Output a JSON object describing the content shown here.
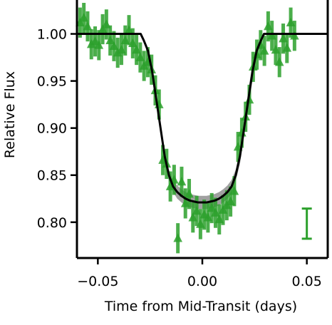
{
  "chart_data": {
    "type": "scatter",
    "xlabel": "Time from Mid-Transit (days)",
    "ylabel": "Relative Flux",
    "xlim": [
      -0.06,
      0.06
    ],
    "ylim": [
      0.762,
      1.036
    ],
    "x_ticks": [
      -0.05,
      0.0,
      0.05
    ],
    "x_tick_labels": [
      "−0.05",
      "0.00",
      "0.05"
    ],
    "y_ticks": [
      0.8,
      0.85,
      0.9,
      0.95,
      1.0
    ],
    "y_tick_labels": [
      "0.80",
      "0.85",
      "0.90",
      "0.95",
      "1.00"
    ],
    "grid": false,
    "legend": "none",
    "colors": {
      "data": "#2ca02c",
      "model": "#000000",
      "model_band": "#808080"
    },
    "series": [
      {
        "kind": "data_points",
        "marker": "triangle-up",
        "points": [
          {
            "x": -0.0585,
            "y": 1.012,
            "err": 0.016
          },
          {
            "x": -0.0567,
            "y": 1.017,
            "err": 0.016
          },
          {
            "x": -0.0549,
            "y": 1.008,
            "err": 0.016
          },
          {
            "x": -0.0531,
            "y": 0.989,
            "err": 0.016
          },
          {
            "x": -0.0513,
            "y": 0.992,
            "err": 0.016
          },
          {
            "x": -0.0495,
            "y": 0.988,
            "err": 0.016
          },
          {
            "x": -0.0477,
            "y": 1.005,
            "err": 0.016
          },
          {
            "x": -0.0459,
            "y": 1.01,
            "err": 0.016
          },
          {
            "x": -0.0441,
            "y": 0.993,
            "err": 0.016
          },
          {
            "x": -0.0423,
            "y": 0.987,
            "err": 0.016
          },
          {
            "x": -0.0405,
            "y": 0.98,
            "err": 0.016
          },
          {
            "x": -0.0387,
            "y": 0.983,
            "err": 0.016
          },
          {
            "x": -0.0369,
            "y": 0.993,
            "err": 0.016
          },
          {
            "x": -0.0351,
            "y": 1.004,
            "err": 0.016
          },
          {
            "x": -0.0333,
            "y": 0.99,
            "err": 0.016
          },
          {
            "x": -0.0315,
            "y": 0.983,
            "err": 0.016
          },
          {
            "x": -0.0297,
            "y": 0.975,
            "err": 0.016
          },
          {
            "x": -0.0279,
            "y": 0.966,
            "err": 0.016
          },
          {
            "x": -0.0261,
            "y": 0.97,
            "err": 0.016
          },
          {
            "x": -0.0243,
            "y": 0.962,
            "err": 0.016
          },
          {
            "x": -0.0225,
            "y": 0.94,
            "err": 0.016
          },
          {
            "x": -0.0207,
            "y": 0.925,
            "err": 0.016
          },
          {
            "x": -0.0189,
            "y": 0.866,
            "err": 0.016
          },
          {
            "x": -0.0171,
            "y": 0.862,
            "err": 0.016
          },
          {
            "x": -0.0153,
            "y": 0.838,
            "err": 0.016
          },
          {
            "x": -0.0135,
            "y": 0.845,
            "err": 0.016
          },
          {
            "x": -0.0117,
            "y": 0.783,
            "err": 0.016
          },
          {
            "x": -0.0099,
            "y": 0.843,
            "err": 0.016
          },
          {
            "x": -0.0081,
            "y": 0.82,
            "err": 0.016
          },
          {
            "x": -0.0063,
            "y": 0.83,
            "err": 0.016
          },
          {
            "x": -0.0045,
            "y": 0.805,
            "err": 0.016
          },
          {
            "x": -0.0027,
            "y": 0.812,
            "err": 0.016
          },
          {
            "x": -0.0009,
            "y": 0.798,
            "err": 0.016
          },
          {
            "x": 0.0009,
            "y": 0.808,
            "err": 0.016
          },
          {
            "x": 0.0027,
            "y": 0.805,
            "err": 0.016
          },
          {
            "x": 0.0045,
            "y": 0.815,
            "err": 0.016
          },
          {
            "x": 0.0063,
            "y": 0.81,
            "err": 0.016
          },
          {
            "x": 0.0081,
            "y": 0.803,
            "err": 0.016
          },
          {
            "x": 0.0099,
            "y": 0.813,
            "err": 0.016
          },
          {
            "x": 0.0117,
            "y": 0.818,
            "err": 0.016
          },
          {
            "x": 0.0135,
            "y": 0.822,
            "err": 0.016
          },
          {
            "x": 0.0153,
            "y": 0.833,
            "err": 0.016
          },
          {
            "x": 0.0171,
            "y": 0.88,
            "err": 0.016
          },
          {
            "x": 0.0189,
            "y": 0.895,
            "err": 0.016
          },
          {
            "x": 0.0207,
            "y": 0.912,
            "err": 0.016
          },
          {
            "x": 0.0225,
            "y": 0.93,
            "err": 0.016
          },
          {
            "x": 0.0243,
            "y": 0.965,
            "err": 0.016
          },
          {
            "x": 0.0261,
            "y": 0.978,
            "err": 0.016
          },
          {
            "x": 0.0279,
            "y": 0.988,
            "err": 0.016
          },
          {
            "x": 0.0297,
            "y": 0.982,
            "err": 0.016
          },
          {
            "x": 0.0315,
            "y": 1.008,
            "err": 0.016
          },
          {
            "x": 0.0333,
            "y": 0.998,
            "err": 0.016
          },
          {
            "x": 0.0351,
            "y": 0.983,
            "err": 0.016
          },
          {
            "x": 0.0369,
            "y": 0.97,
            "err": 0.016
          },
          {
            "x": 0.0387,
            "y": 0.995,
            "err": 0.016
          },
          {
            "x": 0.0405,
            "y": 0.985,
            "err": 0.016
          },
          {
            "x": 0.0423,
            "y": 1.012,
            "err": 0.016
          },
          {
            "x": 0.0441,
            "y": 0.998,
            "err": 0.016
          }
        ]
      },
      {
        "kind": "model",
        "curve": {
          "x": [
            -0.06,
            -0.0295,
            -0.028,
            -0.026,
            -0.024,
            -0.022,
            -0.02,
            -0.018,
            -0.016,
            -0.014,
            -0.012,
            -0.01,
            -0.008,
            -0.006,
            -0.004,
            -0.002,
            0.0,
            0.002,
            0.004,
            0.006,
            0.008,
            0.01,
            0.012,
            0.014,
            0.016,
            0.018,
            0.02,
            0.022,
            0.024,
            0.026,
            0.028,
            0.0295,
            0.06
          ],
          "y": [
            1.0,
            1.0,
            0.993,
            0.982,
            0.96,
            0.93,
            0.9,
            0.87,
            0.85,
            0.838,
            0.832,
            0.828,
            0.825,
            0.823,
            0.822,
            0.821,
            0.821,
            0.821,
            0.822,
            0.823,
            0.825,
            0.828,
            0.832,
            0.838,
            0.85,
            0.87,
            0.9,
            0.93,
            0.96,
            0.982,
            0.993,
            1.0,
            1.0
          ]
        },
        "uncertainty_band": [
          0.0,
          0.0,
          0.001,
          0.002,
          0.003,
          0.004,
          0.005,
          0.005,
          0.006,
          0.006,
          0.007,
          0.007,
          0.007,
          0.007,
          0.007,
          0.007,
          0.007,
          0.007,
          0.007,
          0.007,
          0.007,
          0.007,
          0.007,
          0.007,
          0.006,
          0.008,
          0.009,
          0.01,
          0.009,
          0.005,
          0.002,
          0.0,
          0.0
        ]
      },
      {
        "kind": "typical_error",
        "x": 0.05,
        "y": 0.7985,
        "err": 0.016
      }
    ]
  }
}
